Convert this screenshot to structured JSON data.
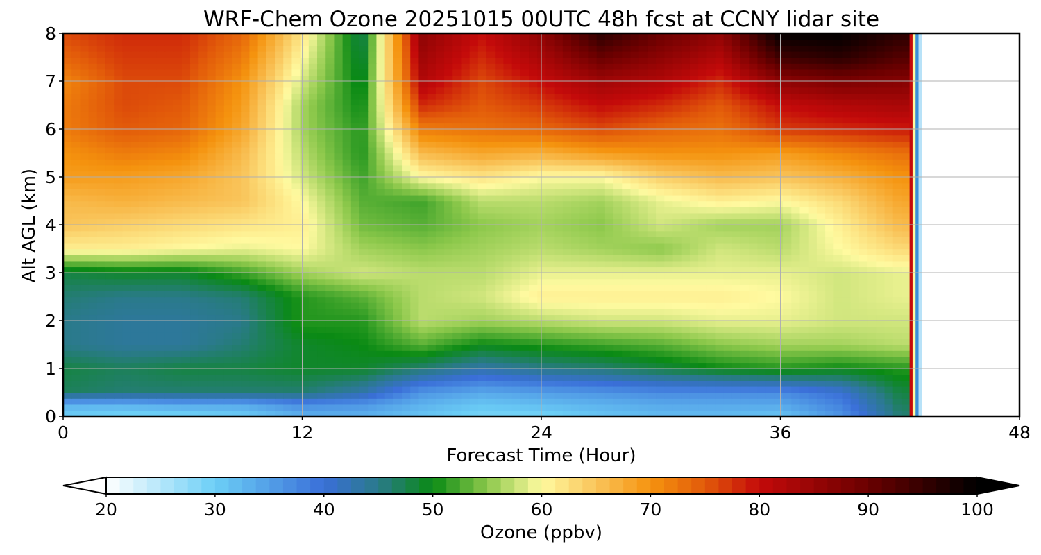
{
  "chart_data": {
    "type": "heatmap",
    "title": "WRF-Chem Ozone  20251015 00UTC 48h fcst at CCNY lidar site",
    "xlabel": "Forecast Time (Hour)",
    "ylabel": "Alt AGL (km)",
    "xlim": [
      0,
      48
    ],
    "ylim": [
      0,
      8
    ],
    "x_ticks": [
      0,
      12,
      24,
      36,
      48
    ],
    "y_ticks": [
      0,
      1,
      2,
      3,
      4,
      5,
      6,
      7,
      8
    ],
    "grid": true,
    "data_end_hour": 42.5,
    "colorbar": {
      "label": "Ozone  (ppbv)",
      "range": [
        20,
        100
      ],
      "extend": "both",
      "ticks": [
        20,
        30,
        40,
        50,
        60,
        70,
        80,
        90,
        100
      ],
      "color_stops": [
        {
          "value": 20,
          "color": "#ffffff"
        },
        {
          "value": 30,
          "color": "#6ccff6"
        },
        {
          "value": 40,
          "color": "#3a6fd8"
        },
        {
          "value": 45,
          "color": "#2a7a8a"
        },
        {
          "value": 50,
          "color": "#0a8a14"
        },
        {
          "value": 55,
          "color": "#8cc84b"
        },
        {
          "value": 60,
          "color": "#fffaa0"
        },
        {
          "value": 65,
          "color": "#f9c45a"
        },
        {
          "value": 70,
          "color": "#f5930e"
        },
        {
          "value": 75,
          "color": "#e25a0a"
        },
        {
          "value": 80,
          "color": "#c40a0a"
        },
        {
          "value": 90,
          "color": "#6a0000"
        },
        {
          "value": 100,
          "color": "#000000"
        }
      ]
    },
    "grid_x_hours": [
      0,
      3,
      6,
      9,
      12,
      15,
      18,
      21,
      24,
      27,
      30,
      33,
      36,
      39,
      42
    ],
    "grid_y_km": [
      0,
      0.25,
      0.5,
      1,
      1.5,
      2,
      2.5,
      3,
      3.5,
      4,
      4.5,
      5,
      5.5,
      6,
      6.5,
      7,
      7.5,
      8
    ],
    "z_ozone_ppbv": [
      [
        30,
        29,
        29,
        30,
        33,
        33,
        31,
        29,
        29,
        31,
        32,
        32,
        31,
        36,
        46
      ],
      [
        33,
        33,
        34,
        34,
        37,
        36,
        33,
        31,
        32,
        33,
        34,
        34,
        34,
        38,
        47
      ],
      [
        47,
        46,
        46,
        46,
        46,
        43,
        36,
        34,
        35,
        36,
        37,
        37,
        37,
        40,
        48
      ],
      [
        48,
        47,
        48,
        48,
        49,
        49,
        46,
        43,
        45,
        46,
        48,
        50,
        51,
        50,
        51
      ],
      [
        45,
        44,
        44,
        46,
        49,
        50,
        53,
        50,
        51,
        52,
        53,
        55,
        56,
        56,
        57
      ],
      [
        45,
        44,
        44,
        45,
        51,
        51,
        57,
        56,
        57,
        58,
        58,
        59,
        59,
        58,
        58
      ],
      [
        46,
        45,
        45,
        46,
        51,
        53,
        57,
        58,
        61,
        61,
        61,
        61,
        60,
        58,
        59
      ],
      [
        48,
        49,
        49,
        52,
        56,
        58,
        57,
        57,
        59,
        59,
        59,
        59,
        59,
        58,
        59
      ],
      [
        61,
        61,
        60,
        59,
        60,
        56,
        55,
        56,
        57,
        56,
        55,
        58,
        57,
        60,
        63
      ],
      [
        65,
        64,
        63,
        62,
        61,
        54,
        53,
        55,
        56,
        55,
        58,
        56,
        56,
        61,
        66
      ],
      [
        66,
        67,
        66,
        65,
        60,
        53,
        52,
        57,
        57,
        56,
        59,
        61,
        60,
        63,
        68
      ],
      [
        69,
        69,
        68,
        65,
        58,
        52,
        60,
        62,
        60,
        60,
        64,
        66,
        65,
        67,
        70
      ],
      [
        70,
        72,
        71,
        66,
        57,
        51,
        66,
        68,
        67,
        69,
        70,
        70,
        69,
        71,
        73
      ],
      [
        72,
        75,
        74,
        68,
        56,
        51,
        72,
        73,
        74,
        76,
        74,
        73,
        77,
        78,
        79
      ],
      [
        72,
        76,
        75,
        69,
        56,
        50,
        78,
        75,
        77,
        80,
        78,
        75,
        80,
        82,
        83
      ],
      [
        71,
        76,
        76,
        70,
        58,
        49,
        82,
        76,
        80,
        84,
        82,
        78,
        86,
        88,
        87
      ],
      [
        74,
        77,
        77,
        72,
        60,
        48,
        84,
        78,
        83,
        90,
        86,
        82,
        94,
        96,
        92
      ],
      [
        76,
        78,
        78,
        74,
        62,
        47,
        86,
        80,
        86,
        96,
        90,
        86,
        100,
        100,
        96
      ]
    ]
  }
}
